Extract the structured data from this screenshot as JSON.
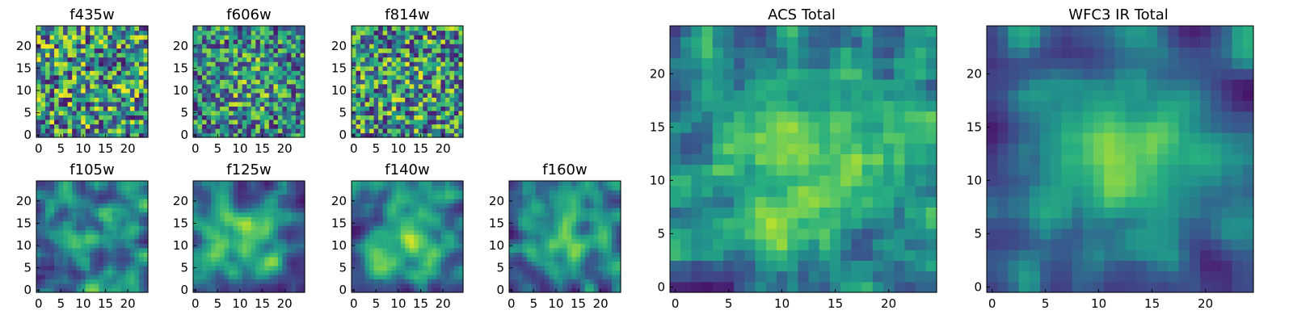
{
  "figure_title": "",
  "chart_data": [
    {
      "id": "f435w",
      "type": "heatmap",
      "title": "f435w",
      "grid_size": 25,
      "xticks": [
        0,
        5,
        10,
        15,
        20
      ],
      "yticks": [
        0,
        5,
        10,
        15,
        20
      ],
      "xlim": [
        0,
        24
      ],
      "ylim": [
        0,
        24
      ],
      "colormap": "viridis",
      "center_peak": 0.0,
      "texture": 0.9,
      "seed": 11
    },
    {
      "id": "f606w",
      "type": "heatmap",
      "title": "f606w",
      "grid_size": 25,
      "xticks": [
        0,
        5,
        10,
        15,
        20
      ],
      "yticks": [
        0,
        5,
        10,
        15,
        20
      ],
      "xlim": [
        0,
        24
      ],
      "ylim": [
        0,
        24
      ],
      "colormap": "viridis",
      "center_peak": 0.15,
      "texture": 0.85,
      "seed": 23
    },
    {
      "id": "f814w",
      "type": "heatmap",
      "title": "f814w",
      "grid_size": 25,
      "xticks": [
        0,
        5,
        10,
        15,
        20
      ],
      "yticks": [
        0,
        5,
        10,
        15,
        20
      ],
      "xlim": [
        0,
        24
      ],
      "ylim": [
        0,
        24
      ],
      "colormap": "viridis",
      "center_peak": 0.05,
      "texture": 0.9,
      "seed": 37
    },
    {
      "id": "f105w",
      "type": "heatmap",
      "title": "f105w",
      "grid_size": 25,
      "xticks": [
        0,
        5,
        10,
        15,
        20
      ],
      "yticks": [
        0,
        5,
        10,
        15,
        20
      ],
      "xlim": [
        0,
        24
      ],
      "ylim": [
        0,
        24
      ],
      "colormap": "viridis",
      "center_peak": 0.2,
      "texture": 0.55,
      "seed": 41
    },
    {
      "id": "f125w",
      "type": "heatmap",
      "title": "f125w",
      "grid_size": 25,
      "xticks": [
        0,
        5,
        10,
        15,
        20
      ],
      "yticks": [
        0,
        5,
        10,
        15,
        20
      ],
      "xlim": [
        0,
        24
      ],
      "ylim": [
        0,
        24
      ],
      "colormap": "viridis",
      "center_peak": 0.3,
      "texture": 0.45,
      "seed": 53
    },
    {
      "id": "f140w",
      "type": "heatmap",
      "title": "f140w",
      "grid_size": 25,
      "xticks": [
        0,
        5,
        10,
        15,
        20
      ],
      "yticks": [
        0,
        5,
        10,
        15,
        20
      ],
      "xlim": [
        0,
        24
      ],
      "ylim": [
        0,
        24
      ],
      "colormap": "viridis",
      "center_peak": 0.3,
      "texture": 0.45,
      "seed": 67
    },
    {
      "id": "f160w",
      "type": "heatmap",
      "title": "f160w",
      "grid_size": 25,
      "xticks": [
        0,
        5,
        10,
        15,
        20
      ],
      "yticks": [
        0,
        5,
        10,
        15,
        20
      ],
      "xlim": [
        0,
        24
      ],
      "ylim": [
        0,
        24
      ],
      "colormap": "viridis",
      "center_peak": 0.35,
      "texture": 0.5,
      "seed": 79
    },
    {
      "id": "acs-total",
      "type": "heatmap",
      "title": "ACS Total",
      "grid_size": 25,
      "xticks": [
        0,
        5,
        10,
        15,
        20
      ],
      "yticks": [
        0,
        5,
        10,
        15,
        20
      ],
      "xlim": [
        0,
        24
      ],
      "ylim": [
        0,
        24
      ],
      "colormap": "viridis",
      "center_peak": 0.25,
      "texture": 0.75,
      "seed": 97
    },
    {
      "id": "wfc3-ir-total",
      "type": "heatmap",
      "title": "WFC3 IR Total",
      "grid_size": 25,
      "xticks": [
        0,
        5,
        10,
        15,
        20
      ],
      "yticks": [
        0,
        5,
        10,
        15,
        20
      ],
      "xlim": [
        0,
        24
      ],
      "ylim": [
        0,
        24
      ],
      "colormap": "viridis",
      "center_peak": 0.4,
      "texture": 0.55,
      "seed": 113
    }
  ]
}
